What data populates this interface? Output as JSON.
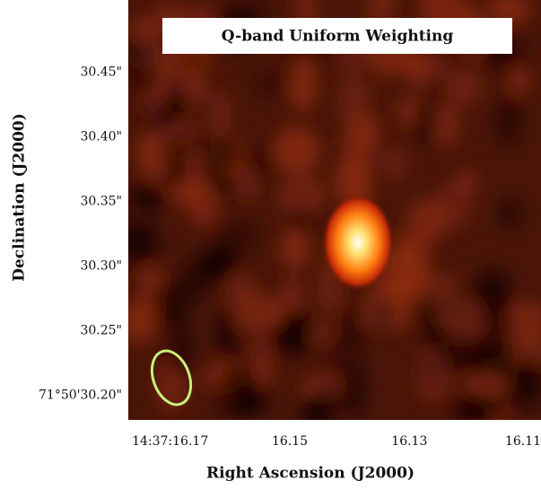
{
  "chart_data": {
    "type": "image",
    "title": "Q-band Uniform Weighting",
    "x_label": "Right Ascension (J2000)",
    "y_label": "Declination (J2000)",
    "xlim": [
      16.177,
      16.108
    ],
    "ylim": [
      30.181,
      30.506
    ],
    "xticks": [
      {
        "value": 16.17,
        "label": "14:37:16.17"
      },
      {
        "value": 16.15,
        "label": "16.15"
      },
      {
        "value": 16.13,
        "label": "16.13"
      },
      {
        "value": 16.11,
        "label": "16.11"
      }
    ],
    "yticks": [
      {
        "value": 30.45,
        "label": "30.45\""
      },
      {
        "value": 30.4,
        "label": "30.40\""
      },
      {
        "value": 30.35,
        "label": "30.35\""
      },
      {
        "value": 30.3,
        "label": "30.30\""
      },
      {
        "value": 30.25,
        "label": "30.25\""
      },
      {
        "value": 30.2,
        "label": "71°50'30.20\""
      }
    ],
    "grid": false
  }
}
